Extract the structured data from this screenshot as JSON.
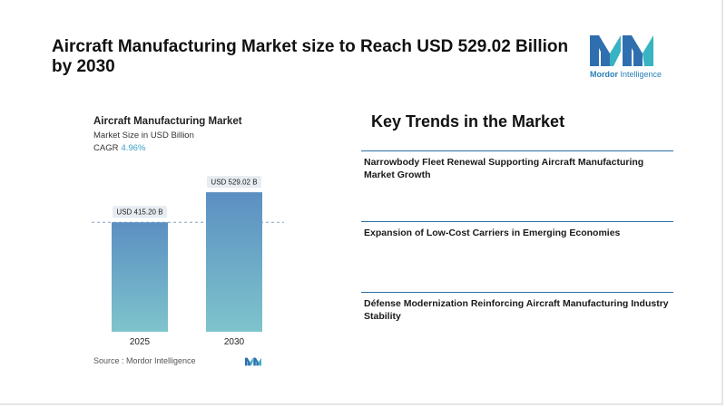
{
  "headline": "Aircraft Manufacturing Market size to Reach USD 529.02 Billion by 2030",
  "logo": {
    "brand_first": "Mordor",
    "brand_second": " Intelligence",
    "primary_color": "#2f6fb0",
    "accent_color": "#37b3c2"
  },
  "chart": {
    "title": "Aircraft Manufacturing Market",
    "subtitle": "Market Size in USD Billion",
    "cagr_label": "CAGR",
    "cagr_value": "4.96%",
    "source": "Source :  Mordor Intelligence"
  },
  "chart_data": {
    "type": "bar",
    "categories": [
      "2025",
      "2030"
    ],
    "values": [
      415.2,
      529.02
    ],
    "data_labels": [
      "USD 415.20 B",
      "USD 529.02 B"
    ],
    "title": "Aircraft Manufacturing Market",
    "xlabel": "",
    "ylabel": "",
    "units": "USD Billion",
    "ylim": [
      0,
      550
    ],
    "grid": false,
    "reference_line": 415.2,
    "bar_gradient": [
      "#5b8fc2",
      "#7ec4cc"
    ]
  },
  "key_trends": {
    "title": "Key Trends in the Market",
    "items": [
      "Narrowbody Fleet Renewal Supporting Aircraft Manufacturing Market Growth",
      "Expansion of Low-Cost Carriers in Emerging Economies",
      "Défense Modernization Reinforcing Aircraft Manufacturing Industry Stability"
    ]
  }
}
